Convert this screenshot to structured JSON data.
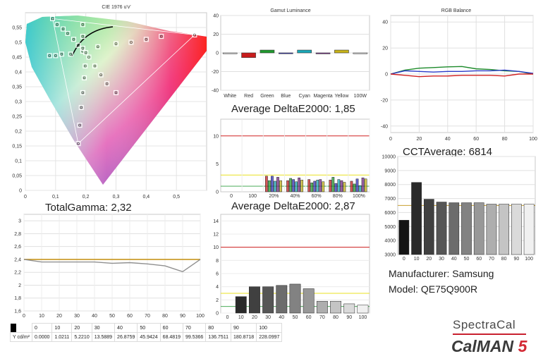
{
  "cie": {
    "title": "CIE 1976 u'v'",
    "x_ticks": [
      "0",
      "0,1",
      "0,2",
      "0,3",
      "0,4",
      "0,5"
    ],
    "y_ticks": [
      "0",
      "0,05",
      "0,1",
      "0,15",
      "0,2",
      "0,25",
      "0,3",
      "0,35",
      "0,4",
      "0,45",
      "0,5",
      "0,55"
    ],
    "gamut": {
      "red": [
        0.56,
        0.525
      ],
      "green": [
        0.09,
        0.58
      ],
      "blue": [
        0.175,
        0.158
      ]
    },
    "targets": [
      [
        0.56,
        0.525
      ],
      [
        0.45,
        0.52
      ],
      [
        0.4,
        0.51
      ],
      [
        0.35,
        0.5
      ],
      [
        0.3,
        0.495
      ],
      [
        0.24,
        0.485
      ],
      [
        0.09,
        0.58
      ],
      [
        0.105,
        0.56
      ],
      [
        0.125,
        0.545
      ],
      [
        0.14,
        0.53
      ],
      [
        0.16,
        0.51
      ],
      [
        0.175,
        0.49
      ],
      [
        0.175,
        0.158
      ],
      [
        0.18,
        0.22
      ],
      [
        0.185,
        0.28
      ],
      [
        0.19,
        0.33
      ],
      [
        0.195,
        0.38
      ],
      [
        0.198,
        0.42
      ],
      [
        0.19,
        0.47
      ],
      [
        0.3,
        0.33
      ],
      [
        0.27,
        0.36
      ],
      [
        0.25,
        0.39
      ],
      [
        0.23,
        0.42
      ],
      [
        0.21,
        0.45
      ],
      [
        0.19,
        0.56
      ],
      [
        0.19,
        0.52
      ],
      [
        0.19,
        0.48
      ],
      [
        0.2,
        0.465
      ],
      [
        0.15,
        0.46
      ],
      [
        0.12,
        0.46
      ],
      [
        0.1,
        0.455
      ],
      [
        0.08,
        0.455
      ]
    ]
  },
  "gamut_luminance": {
    "title": "Gamut Luminance",
    "y_ticks": [
      "40",
      "20",
      "0",
      "-20",
      "-40"
    ],
    "categories": [
      "White",
      "Red",
      "Green",
      "Blue",
      "Cyan",
      "Magenta",
      "Yellow",
      "100W"
    ],
    "colors": [
      "#ffffff",
      "#c81c1c",
      "#1f9a2e",
      "#3030c0",
      "#1aa8b8",
      "#7a2a8a",
      "#c8b418",
      "#ffffff"
    ],
    "values": [
      0,
      -5,
      3,
      0,
      3,
      -1,
      3,
      0
    ]
  },
  "rgb_balance": {
    "title": "RGB Balance",
    "y_ticks": [
      "40",
      "20",
      "0",
      "-20",
      "-40"
    ],
    "x_ticks": [
      "0",
      "20",
      "40",
      "60",
      "80",
      "100"
    ],
    "x": [
      0,
      10,
      20,
      30,
      40,
      50,
      60,
      70,
      80,
      90,
      100
    ],
    "series": [
      {
        "color": "#1c8a2a",
        "values": [
          0,
          3,
          4.5,
          5,
          5.5,
          5.8,
          4,
          3.5,
          2.5,
          2,
          0
        ]
      },
      {
        "color": "#2a3ac8",
        "values": [
          0,
          2.5,
          2,
          1.5,
          2,
          2,
          2.5,
          2.5,
          3,
          2,
          0.5
        ]
      },
      {
        "color": "#d02020",
        "values": [
          0,
          -1,
          -2,
          -1.5,
          -1.5,
          -1,
          -1,
          -1,
          -1.5,
          0,
          0
        ]
      }
    ]
  },
  "delta_sat": {
    "title": "Average DeltaE2000: 1,85",
    "y_ticks": [
      "10",
      "5",
      "0"
    ],
    "x_labels": [
      "0",
      "100",
      "20%",
      "40%",
      "60%",
      "80%",
      "100%"
    ],
    "groups": [
      "20%",
      "40%",
      "60%",
      "80%",
      "100%"
    ],
    "group_values": [
      [
        2.8,
        2.0,
        2.8,
        1.9,
        2.6,
        2.0
      ],
      [
        2.0,
        2.4,
        2.2,
        1.8,
        2.5,
        2.1
      ],
      [
        2.2,
        1.6,
        1.9,
        2.1,
        2.2,
        1.8
      ],
      [
        2.1,
        2.6,
        1.5,
        2.2,
        2.0,
        1.7
      ],
      [
        1.9,
        1.4,
        2.3,
        1.1,
        2.5,
        2.3
      ]
    ],
    "bar_colors": [
      "#c82020",
      "#1f9a2e",
      "#3030c0",
      "#1aa8b8",
      "#7a2a8a",
      "#c8b418"
    ]
  },
  "cct": {
    "title": "CCTAverage: 6814",
    "y_ticks": [
      "10000",
      "9000",
      "8000",
      "7000",
      "6000",
      "5000",
      "4000",
      "3000"
    ],
    "x_ticks": [
      "0",
      "10",
      "20",
      "30",
      "40",
      "50",
      "60",
      "70",
      "80",
      "90",
      "100"
    ],
    "values": [
      5450,
      8150,
      6950,
      6750,
      6700,
      6700,
      6700,
      6600,
      6600,
      6600,
      6600
    ]
  },
  "gamma": {
    "title": "TotalGamma: 2,32",
    "y_ticks": [
      "3",
      "2,8",
      "2,6",
      "2,4",
      "2,2",
      "2",
      "1,8",
      "1,6"
    ],
    "x_ticks": [
      "0",
      "10",
      "20",
      "30",
      "40",
      "50",
      "60",
      "70",
      "80",
      "90",
      "100"
    ],
    "target": 2.4,
    "x": [
      0,
      10,
      20,
      30,
      40,
      50,
      60,
      70,
      80,
      90,
      100
    ],
    "values": [
      2.4,
      2.36,
      2.36,
      2.36,
      2.36,
      2.34,
      2.35,
      2.33,
      2.3,
      2.21,
      2.4
    ]
  },
  "delta_gray": {
    "title": "Average DeltaE2000: 2,87",
    "y_ticks": [
      "14",
      "12",
      "10",
      "8",
      "6",
      "4",
      "2",
      "0"
    ],
    "x_ticks": [
      "0",
      "10",
      "20",
      "30",
      "40",
      "50",
      "60",
      "70",
      "80",
      "90",
      "100"
    ],
    "values": [
      0,
      2.5,
      4,
      4,
      4.2,
      4.4,
      3.7,
      1.8,
      1.8,
      1.4,
      1.2
    ]
  },
  "luminance_table": {
    "label": "Y cd/m²",
    "headers": [
      "0",
      "10",
      "20",
      "30",
      "40",
      "50",
      "60",
      "70",
      "80",
      "90",
      "100"
    ],
    "values": [
      "0.0000",
      "1.0211",
      "5.2210",
      "13.5889",
      "26.8759",
      "45.9424",
      "68.4819",
      "99.5366",
      "136.7511",
      "180.8718",
      "228.0997"
    ]
  },
  "device": {
    "manufacturer": "Manufacturer: Samsung",
    "model": "Model: QE75Q900R"
  },
  "logo": {
    "brand": "SpectraCal",
    "product": "CalMAN",
    "version": "5"
  }
}
